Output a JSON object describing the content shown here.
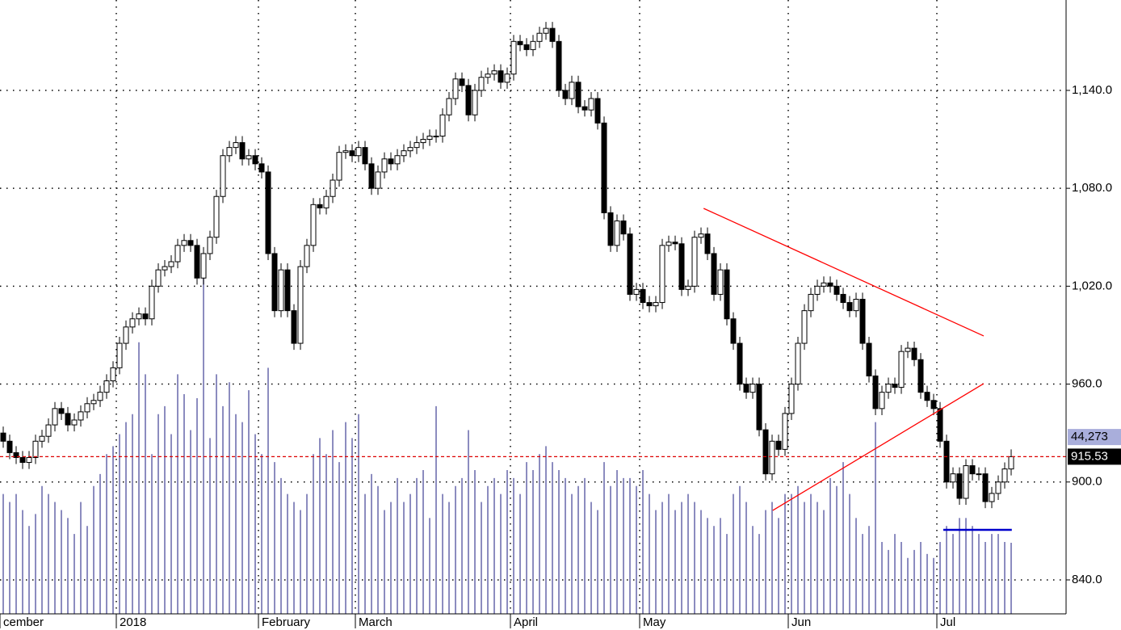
{
  "chart_data": {
    "type": "candlestick",
    "categories": [
      "cember",
      null,
      null,
      null,
      null,
      null,
      null,
      null,
      null,
      null,
      null,
      null,
      null,
      null,
      null,
      null,
      null,
      null,
      "2018",
      null,
      null,
      null,
      null,
      null,
      null,
      null,
      null,
      null,
      null,
      null,
      null,
      null,
      null,
      null,
      null,
      null,
      null,
      null,
      null,
      null,
      "February",
      null,
      null,
      null,
      null,
      null,
      null,
      null,
      null,
      null,
      null,
      null,
      null,
      null,
      null,
      "March",
      null,
      null,
      null,
      null,
      null,
      null,
      null,
      null,
      null,
      null,
      null,
      null,
      null,
      null,
      null,
      null,
      null,
      null,
      null,
      null,
      null,
      null,
      null,
      "April",
      null,
      null,
      null,
      null,
      null,
      null,
      null,
      null,
      null,
      null,
      null,
      null,
      null,
      null,
      null,
      null,
      null,
      null,
      null,
      "May",
      null,
      null,
      null,
      null,
      null,
      null,
      null,
      null,
      null,
      null,
      null,
      null,
      null,
      null,
      null,
      null,
      null,
      null,
      null,
      null,
      null,
      null,
      "Jun",
      null,
      null,
      null,
      null,
      null,
      null,
      null,
      null,
      null,
      null,
      null,
      null,
      null,
      null,
      null,
      null,
      null,
      null,
      null,
      null,
      null,
      null,
      "Jul",
      null,
      null,
      null,
      null,
      null,
      null,
      null,
      null,
      null,
      null,
      null
    ],
    "ohlc": [
      [
        930,
        934,
        921,
        925
      ],
      [
        925,
        929,
        914,
        918
      ],
      [
        918,
        922,
        911,
        915
      ],
      [
        915,
        919,
        908,
        912
      ],
      [
        912,
        919,
        908,
        915
      ],
      [
        915,
        929,
        911,
        925
      ],
      [
        925,
        932,
        921,
        928
      ],
      [
        928,
        939,
        924,
        935
      ],
      [
        935,
        949,
        931,
        945
      ],
      [
        945,
        949,
        938,
        942
      ],
      [
        942,
        946,
        931,
        935
      ],
      [
        935,
        942,
        931,
        938
      ],
      [
        938,
        947,
        934,
        943
      ],
      [
        943,
        952,
        939,
        948
      ],
      [
        948,
        954,
        944,
        950
      ],
      [
        950,
        959,
        946,
        955
      ],
      [
        955,
        966,
        951,
        962
      ],
      [
        962,
        974,
        958,
        970
      ],
      [
        970,
        989,
        966,
        985
      ],
      [
        985,
        999,
        981,
        995
      ],
      [
        995,
        1004,
        991,
        1000
      ],
      [
        1000,
        1007,
        996,
        1003
      ],
      [
        1003,
        1007,
        996,
        1000
      ],
      [
        1000,
        1024,
        996,
        1020
      ],
      [
        1020,
        1034,
        1016,
        1030
      ],
      [
        1030,
        1036,
        1026,
        1032
      ],
      [
        1032,
        1039,
        1028,
        1035
      ],
      [
        1035,
        1049,
        1031,
        1045
      ],
      [
        1045,
        1052,
        1041,
        1048
      ],
      [
        1048,
        1052,
        1041,
        1045
      ],
      [
        1045,
        1049,
        1021,
        1025
      ],
      [
        1025,
        1044,
        1021,
        1040
      ],
      [
        1040,
        1054,
        1036,
        1050
      ],
      [
        1050,
        1079,
        1046,
        1075
      ],
      [
        1075,
        1104,
        1071,
        1100
      ],
      [
        1100,
        1109,
        1096,
        1105
      ],
      [
        1105,
        1112,
        1101,
        1108
      ],
      [
        1108,
        1112,
        1094,
        1098
      ],
      [
        1098,
        1104,
        1094,
        1100
      ],
      [
        1100,
        1104,
        1091,
        1095
      ],
      [
        1095,
        1099,
        1086,
        1090
      ],
      [
        1090,
        1094,
        1036,
        1040
      ],
      [
        1040,
        1044,
        1001,
        1005
      ],
      [
        1005,
        1034,
        1001,
        1030
      ],
      [
        1030,
        1034,
        1001,
        1005
      ],
      [
        1005,
        1009,
        981,
        985
      ],
      [
        985,
        1036,
        981,
        1032
      ],
      [
        1032,
        1049,
        1028,
        1045
      ],
      [
        1045,
        1074,
        1041,
        1070
      ],
      [
        1070,
        1074,
        1064,
        1068
      ],
      [
        1068,
        1079,
        1064,
        1075
      ],
      [
        1075,
        1089,
        1071,
        1085
      ],
      [
        1085,
        1106,
        1081,
        1102
      ],
      [
        1102,
        1107,
        1098,
        1103
      ],
      [
        1103,
        1107,
        1096,
        1100
      ],
      [
        1100,
        1109,
        1096,
        1105
      ],
      [
        1105,
        1109,
        1091,
        1095
      ],
      [
        1095,
        1099,
        1076,
        1080
      ],
      [
        1080,
        1094,
        1076,
        1090
      ],
      [
        1090,
        1102,
        1086,
        1098
      ],
      [
        1098,
        1102,
        1091,
        1095
      ],
      [
        1095,
        1104,
        1091,
        1100
      ],
      [
        1100,
        1107,
        1096,
        1103
      ],
      [
        1103,
        1109,
        1099,
        1105
      ],
      [
        1105,
        1112,
        1101,
        1108
      ],
      [
        1108,
        1114,
        1104,
        1110
      ],
      [
        1110,
        1116,
        1106,
        1112
      ],
      [
        1112,
        1116,
        1108,
        1112
      ],
      [
        1112,
        1129,
        1108,
        1125
      ],
      [
        1125,
        1139,
        1121,
        1135
      ],
      [
        1135,
        1151,
        1131,
        1147
      ],
      [
        1147,
        1151,
        1139,
        1143
      ],
      [
        1143,
        1147,
        1121,
        1125
      ],
      [
        1125,
        1144,
        1121,
        1140
      ],
      [
        1140,
        1152,
        1136,
        1148
      ],
      [
        1148,
        1154,
        1144,
        1150
      ],
      [
        1150,
        1156,
        1146,
        1152
      ],
      [
        1152,
        1156,
        1141,
        1145
      ],
      [
        1145,
        1154,
        1141,
        1150
      ],
      [
        1150,
        1174,
        1146,
        1170
      ],
      [
        1170,
        1174,
        1164,
        1168
      ],
      [
        1168,
        1172,
        1161,
        1165
      ],
      [
        1165,
        1174,
        1161,
        1170
      ],
      [
        1170,
        1179,
        1166,
        1175
      ],
      [
        1175,
        1182,
        1171,
        1178
      ],
      [
        1178,
        1182,
        1166,
        1170
      ],
      [
        1170,
        1174,
        1136,
        1140
      ],
      [
        1140,
        1144,
        1131,
        1135
      ],
      [
        1135,
        1149,
        1131,
        1145
      ],
      [
        1145,
        1149,
        1126,
        1130
      ],
      [
        1130,
        1134,
        1124,
        1128
      ],
      [
        1128,
        1139,
        1124,
        1135
      ],
      [
        1135,
        1139,
        1116,
        1120
      ],
      [
        1120,
        1124,
        1061,
        1065
      ],
      [
        1065,
        1069,
        1041,
        1045
      ],
      [
        1045,
        1064,
        1041,
        1060
      ],
      [
        1060,
        1064,
        1048,
        1052
      ],
      [
        1052,
        1056,
        1011,
        1015
      ],
      [
        1015,
        1022,
        1011,
        1018
      ],
      [
        1018,
        1022,
        1006,
        1010
      ],
      [
        1010,
        1014,
        1004,
        1008
      ],
      [
        1008,
        1014,
        1004,
        1010
      ],
      [
        1010,
        1049,
        1006,
        1045
      ],
      [
        1045,
        1051,
        1041,
        1047
      ],
      [
        1047,
        1051,
        1042,
        1046
      ],
      [
        1046,
        1050,
        1014,
        1018
      ],
      [
        1018,
        1024,
        1014,
        1020
      ],
      [
        1020,
        1054,
        1016,
        1050
      ],
      [
        1050,
        1056,
        1046,
        1052
      ],
      [
        1052,
        1056,
        1036,
        1040
      ],
      [
        1040,
        1044,
        1011,
        1015
      ],
      [
        1015,
        1034,
        1011,
        1030
      ],
      [
        1030,
        1034,
        996,
        1000
      ],
      [
        1000,
        1004,
        981,
        985
      ],
      [
        985,
        989,
        956,
        960
      ],
      [
        960,
        964,
        951,
        955
      ],
      [
        955,
        964,
        951,
        960
      ],
      [
        960,
        964,
        928,
        932
      ],
      [
        932,
        936,
        901,
        905
      ],
      [
        905,
        929,
        901,
        925
      ],
      [
        925,
        929,
        916,
        920
      ],
      [
        920,
        946,
        916,
        942
      ],
      [
        942,
        964,
        938,
        960
      ],
      [
        960,
        989,
        956,
        985
      ],
      [
        985,
        1009,
        981,
        1005
      ],
      [
        1005,
        1019,
        1001,
        1015
      ],
      [
        1015,
        1024,
        1011,
        1020
      ],
      [
        1020,
        1026,
        1016,
        1022
      ],
      [
        1022,
        1026,
        1016,
        1020
      ],
      [
        1020,
        1024,
        1011,
        1015
      ],
      [
        1015,
        1019,
        1006,
        1010
      ],
      [
        1010,
        1014,
        1001,
        1005
      ],
      [
        1005,
        1016,
        1001,
        1012
      ],
      [
        1012,
        1016,
        981,
        985
      ],
      [
        985,
        989,
        961,
        965
      ],
      [
        965,
        969,
        941,
        945
      ],
      [
        945,
        959,
        941,
        955
      ],
      [
        955,
        964,
        951,
        960
      ],
      [
        960,
        964,
        954,
        958
      ],
      [
        958,
        984,
        954,
        980
      ],
      [
        980,
        986,
        976,
        982
      ],
      [
        982,
        986,
        971,
        975
      ],
      [
        975,
        979,
        951,
        955
      ],
      [
        955,
        959,
        946,
        950
      ],
      [
        950,
        954,
        941,
        945
      ],
      [
        945,
        949,
        921,
        925
      ],
      [
        925,
        929,
        896,
        900
      ],
      [
        900,
        909,
        896,
        905
      ],
      [
        905,
        909,
        886,
        890
      ],
      [
        890,
        914,
        886,
        910
      ],
      [
        910,
        914,
        901,
        905
      ],
      [
        905,
        909,
        901,
        905
      ],
      [
        905,
        909,
        884,
        888
      ],
      [
        888,
        897,
        884,
        893
      ],
      [
        893,
        904,
        889,
        900
      ],
      [
        900,
        912,
        896,
        908
      ],
      [
        908,
        920,
        904,
        915.53
      ]
    ],
    "volume": [
      30000,
      28000,
      30000,
      26000,
      22000,
      25000,
      32000,
      30000,
      28000,
      26000,
      24000,
      20000,
      28000,
      22000,
      32000,
      35000,
      40000,
      42000,
      45000,
      48000,
      50000,
      68000,
      60000,
      40000,
      50000,
      52000,
      45000,
      60000,
      55000,
      46000,
      54000,
      84400,
      44000,
      60000,
      52000,
      58000,
      50000,
      48000,
      56000,
      45000,
      40000,
      61600,
      38000,
      34000,
      30000,
      28000,
      26000,
      30000,
      40000,
      44000,
      40000,
      46000,
      38000,
      48000,
      44000,
      50000,
      30000,
      35000,
      32000,
      26000,
      28000,
      34000,
      28000,
      30000,
      34000,
      36000,
      24000,
      52000,
      30000,
      28000,
      32000,
      34000,
      46000,
      36000,
      28000,
      32000,
      34000,
      30000,
      36000,
      34000,
      30000,
      38000,
      36000,
      40000,
      42000,
      38000,
      36000,
      34000,
      30000,
      32000,
      34000,
      28000,
      26000,
      38000,
      32000,
      36000,
      34000,
      34000,
      32000,
      36000,
      30000,
      26000,
      28000,
      30000,
      26000,
      28000,
      30000,
      28000,
      26000,
      24000,
      22000,
      24000,
      20000,
      30000,
      32000,
      28000,
      22000,
      20000,
      26000,
      28000,
      24000,
      30000,
      30000,
      32000,
      28000,
      30000,
      28000,
      26000,
      34000,
      32000,
      38000,
      30000,
      24000,
      20000,
      22000,
      48000,
      18000,
      16000,
      20000,
      18000,
      14000,
      16000,
      18000,
      15000,
      14000,
      18000,
      22000,
      20000,
      24000,
      24000,
      22000,
      20000,
      18000,
      20000,
      20000,
      18000,
      17800
    ],
    "volume_color": "#6666aa",
    "up_color": "#ffffff",
    "down_color": "#000000",
    "xlim": [
      -0.5,
      164.5
    ],
    "ylim": [
      819.2,
      1195.4
    ],
    "yticks": [
      {
        "value": 840,
        "label": "840.0"
      },
      {
        "value": 900,
        "label": "900.0"
      },
      {
        "value": 960,
        "label": "960.0"
      },
      {
        "value": 1020,
        "label": "1,020.0"
      },
      {
        "value": 1080,
        "label": "1,080.0"
      },
      {
        "value": 1140,
        "label": "1,140.0"
      }
    ],
    "y2lim": [
      0,
      153700
    ],
    "volume_label": {
      "value": 44273,
      "label": "44,273"
    },
    "grid": true,
    "lines": [
      {
        "color": "#ff0000",
        "x": [
          108.4,
          151.75
        ],
        "y": [
          1067.7,
          989.5
        ]
      },
      {
        "color": "#ff0000",
        "x": [
          119.1,
          151.75
        ],
        "y": [
          882.6,
          960.3
        ]
      },
      {
        "color": "#0000cc",
        "x": [
          145.5,
          156.1
        ],
        "y": [
          870.7,
          870.7
        ]
      }
    ]
  }
}
